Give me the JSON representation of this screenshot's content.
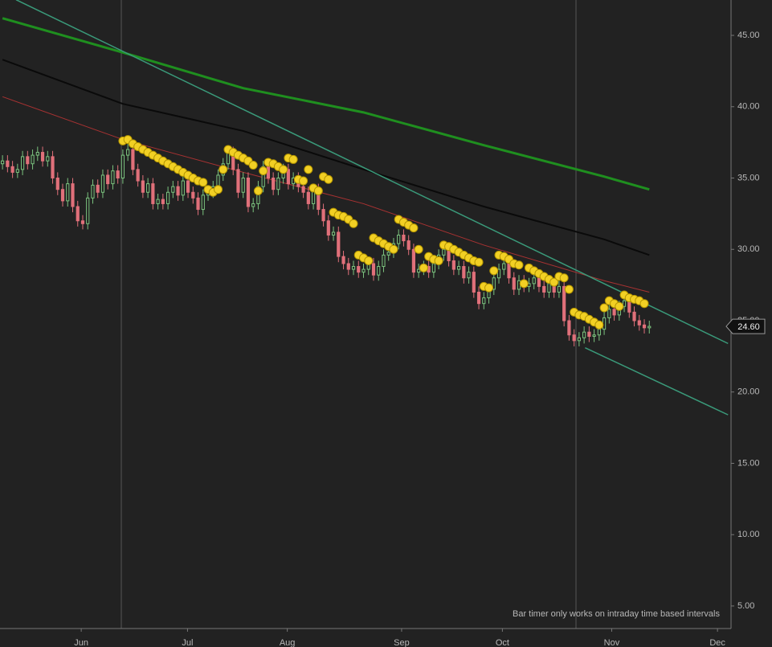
{
  "chart_data": {
    "type": "candlestick",
    "up_color": "#7cc47f",
    "down_color": "#e0707a",
    "open": [
      36.0,
      36.2,
      35.8,
      35.4,
      35.6,
      36.5,
      36.0,
      36.6,
      36.8,
      36.2,
      36.5,
      35.0,
      34.2,
      33.4,
      34.6,
      33.0,
      32.0,
      31.8,
      33.6,
      34.5,
      34.0,
      35.2,
      34.6,
      35.5,
      35.0,
      36.6,
      37.0,
      35.6,
      34.8,
      34.0,
      34.6,
      33.2,
      33.5,
      33.2,
      34.0,
      34.4,
      33.8,
      34.8,
      34.0,
      33.6,
      32.8,
      33.8,
      34.0,
      34.4,
      35.2,
      36.0,
      36.8,
      35.6,
      34.0,
      35.0,
      33.0,
      33.2,
      34.4,
      35.8,
      35.0,
      34.2,
      35.0,
      35.6,
      34.6,
      35.0,
      34.4,
      34.0,
      33.2,
      34.2,
      32.8,
      32.0,
      31.0,
      31.2,
      29.5,
      29.0,
      28.6,
      28.8,
      28.4,
      28.6,
      29.0,
      28.2,
      28.8,
      29.6,
      29.8,
      30.4,
      31.0,
      30.6,
      30.0,
      28.4,
      28.6,
      28.8,
      28.4,
      29.0,
      29.6,
      30.0,
      29.2,
      28.6,
      28.8,
      28.0,
      28.4,
      27.0,
      26.2,
      26.6,
      27.2,
      28.0,
      28.6,
      29.0,
      28.0,
      27.2,
      27.8,
      27.4,
      27.6,
      28.0,
      27.4,
      27.0,
      27.6,
      27.0,
      27.4,
      25.0,
      24.0,
      23.6,
      23.8,
      24.2,
      23.9,
      24.0,
      24.4,
      25.2,
      25.8,
      25.4,
      26.0,
      26.4,
      25.6,
      25.0,
      24.7,
      24.5
    ],
    "high": [
      36.6,
      36.6,
      36.2,
      36.0,
      36.9,
      36.9,
      37.0,
      37.2,
      37.2,
      36.9,
      36.9,
      35.4,
      34.6,
      35.0,
      35.0,
      33.4,
      32.4,
      34.0,
      34.9,
      34.9,
      35.6,
      35.6,
      35.9,
      35.9,
      37.0,
      37.4,
      37.4,
      36.0,
      35.2,
      35.0,
      35.0,
      33.9,
      33.9,
      34.4,
      34.8,
      34.8,
      35.2,
      35.2,
      34.4,
      34.0,
      34.2,
      34.4,
      34.8,
      35.6,
      36.4,
      37.2,
      37.2,
      36.0,
      35.4,
      35.4,
      33.6,
      34.8,
      36.2,
      36.2,
      35.4,
      35.4,
      36.0,
      36.0,
      35.4,
      35.4,
      34.8,
      34.4,
      34.6,
      34.6,
      33.2,
      32.4,
      31.6,
      31.6,
      29.9,
      29.4,
      29.2,
      29.2,
      29.0,
      29.4,
      29.4,
      29.2,
      30.0,
      30.2,
      30.8,
      31.4,
      31.4,
      31.0,
      30.4,
      29.0,
      29.2,
      29.2,
      29.4,
      30.0,
      30.4,
      30.4,
      29.6,
      29.2,
      29.2,
      28.8,
      28.8,
      27.4,
      27.0,
      27.6,
      28.4,
      29.0,
      29.4,
      29.4,
      28.4,
      28.2,
      28.2,
      28.0,
      28.4,
      28.4,
      27.8,
      28.0,
      28.0,
      27.8,
      27.8,
      25.4,
      24.4,
      24.2,
      24.6,
      24.6,
      24.4,
      24.8,
      25.6,
      26.2,
      26.2,
      26.4,
      26.8,
      26.8,
      26.0,
      25.4,
      25.1,
      25.0
    ],
    "low": [
      35.6,
      35.4,
      35.0,
      35.0,
      35.2,
      35.6,
      35.6,
      36.2,
      35.8,
      35.8,
      34.6,
      33.8,
      33.0,
      33.0,
      32.6,
      31.6,
      31.4,
      31.4,
      33.2,
      33.6,
      33.6,
      34.2,
      34.2,
      34.6,
      34.6,
      36.2,
      35.2,
      34.4,
      33.6,
      33.6,
      32.8,
      32.8,
      32.8,
      32.8,
      33.6,
      33.4,
      33.4,
      33.6,
      33.2,
      32.4,
      32.4,
      33.4,
      33.6,
      34.0,
      34.8,
      35.6,
      35.2,
      33.6,
      33.6,
      32.6,
      32.6,
      32.8,
      34.0,
      34.6,
      33.8,
      33.8,
      34.6,
      34.2,
      34.2,
      34.0,
      33.6,
      32.8,
      32.8,
      32.4,
      31.6,
      30.6,
      30.6,
      29.1,
      28.6,
      28.2,
      28.2,
      28.0,
      28.0,
      28.2,
      27.8,
      27.8,
      28.4,
      29.2,
      29.4,
      30.0,
      30.2,
      29.6,
      28.0,
      28.0,
      28.2,
      28.0,
      28.0,
      28.6,
      29.2,
      28.8,
      28.2,
      28.2,
      27.6,
      27.6,
      26.6,
      25.8,
      25.8,
      26.2,
      26.8,
      27.6,
      28.2,
      27.6,
      26.8,
      26.8,
      27.0,
      27.0,
      27.2,
      27.0,
      26.6,
      26.6,
      26.6,
      26.6,
      24.6,
      23.6,
      23.2,
      23.2,
      23.4,
      23.5,
      23.5,
      23.6,
      24.0,
      24.8,
      25.0,
      25.0,
      25.6,
      25.2,
      24.6,
      24.3,
      24.1,
      24.1
    ],
    "close": [
      36.2,
      35.8,
      35.4,
      35.6,
      36.5,
      36.0,
      36.6,
      36.8,
      36.2,
      36.5,
      35.0,
      34.2,
      33.4,
      34.6,
      33.0,
      32.0,
      31.8,
      33.6,
      34.5,
      34.0,
      35.2,
      34.6,
      35.5,
      35.0,
      36.6,
      37.0,
      35.6,
      34.8,
      34.0,
      34.6,
      33.2,
      33.5,
      33.2,
      34.0,
      34.4,
      33.8,
      34.8,
      34.0,
      33.6,
      32.8,
      33.8,
      34.0,
      34.4,
      35.2,
      36.0,
      36.8,
      35.6,
      34.0,
      35.0,
      33.0,
      33.2,
      34.4,
      35.8,
      35.0,
      34.2,
      35.0,
      35.6,
      34.6,
      35.0,
      34.4,
      34.0,
      33.2,
      34.2,
      32.8,
      32.0,
      31.0,
      31.2,
      29.5,
      29.0,
      28.6,
      28.8,
      28.4,
      28.6,
      29.0,
      28.2,
      28.8,
      29.6,
      29.8,
      30.4,
      31.0,
      30.6,
      30.0,
      28.4,
      28.6,
      28.8,
      28.4,
      29.0,
      29.6,
      30.0,
      29.2,
      28.6,
      28.8,
      28.0,
      28.4,
      27.0,
      26.2,
      26.6,
      27.2,
      28.0,
      28.6,
      29.0,
      28.0,
      27.2,
      27.8,
      27.4,
      27.6,
      28.0,
      27.4,
      27.0,
      27.6,
      27.0,
      27.4,
      25.0,
      24.0,
      23.6,
      23.8,
      24.2,
      23.9,
      24.0,
      24.4,
      25.2,
      25.8,
      25.4,
      26.0,
      26.4,
      25.6,
      25.0,
      24.7,
      24.5,
      24.6
    ],
    "sar": {
      "color": "#f2d024",
      "values": [
        null,
        null,
        null,
        null,
        null,
        null,
        null,
        null,
        null,
        null,
        null,
        null,
        null,
        null,
        null,
        null,
        null,
        null,
        null,
        null,
        null,
        null,
        null,
        null,
        37.6,
        37.7,
        37.4,
        37.2,
        37.0,
        36.8,
        36.6,
        36.4,
        36.2,
        36.0,
        35.8,
        35.6,
        35.4,
        35.2,
        35.0,
        34.8,
        34.7,
        34.2,
        34.0,
        34.2,
        35.6,
        37.0,
        36.8,
        36.6,
        36.4,
        36.2,
        35.9,
        34.1,
        35.5,
        36.1,
        36.0,
        35.8,
        35.6,
        36.4,
        36.3,
        34.9,
        34.8,
        35.6,
        34.3,
        34.1,
        35.1,
        34.9,
        32.6,
        32.4,
        32.3,
        32.1,
        31.8,
        29.6,
        29.4,
        29.2,
        30.8,
        30.6,
        30.4,
        30.2,
        30.0,
        32.1,
        31.9,
        31.7,
        31.5,
        30.0,
        28.7,
        29.5,
        29.3,
        29.2,
        30.3,
        30.2,
        30.0,
        29.8,
        29.6,
        29.4,
        29.2,
        29.1,
        27.4,
        27.3,
        28.5,
        29.6,
        29.5,
        29.3,
        29.0,
        28.9,
        27.6,
        28.7,
        28.5,
        28.3,
        28.1,
        27.9,
        27.7,
        28.1,
        28.0,
        27.2,
        25.6,
        25.4,
        25.3,
        25.1,
        24.9,
        24.7,
        25.9,
        26.4,
        26.2,
        26.0,
        26.8,
        26.6,
        26.5,
        26.4,
        26.2,
        null
      ]
    },
    "lines": [
      {
        "color": "#1f8f1f",
        "width": 3,
        "x": [
          0,
          24,
          48,
          72,
          96,
          120,
          129
        ],
        "values": [
          46.2,
          43.8,
          41.3,
          39.6,
          37.3,
          35.1,
          34.2
        ]
      },
      {
        "color": "#0a0a0a",
        "width": 2,
        "x": [
          0,
          24,
          48,
          72,
          96,
          120,
          129
        ],
        "values": [
          43.3,
          40.2,
          38.3,
          35.6,
          33.0,
          30.7,
          29.6
        ]
      },
      {
        "color": "#a83232",
        "width": 1,
        "x": [
          0,
          24,
          48,
          72,
          96,
          120,
          129
        ],
        "values": [
          40.7,
          37.7,
          35.4,
          33.2,
          30.3,
          27.8,
          27.0
        ]
      },
      {
        "color": "#3a9a7a",
        "width": 1.5,
        "x": [
          2.7,
          144.7
        ],
        "values": [
          47.5,
          23.4
        ]
      },
      {
        "color": "#3a9a7a",
        "width": 1.5,
        "x": [
          116.2,
          144.7
        ],
        "values": [
          23.1,
          18.4
        ]
      }
    ],
    "xlim": [
      -0.5,
      145.3
    ],
    "xticks": [
      {
        "value": 15.7,
        "label": "Jun"
      },
      {
        "value": 36.9,
        "label": "Jul"
      },
      {
        "value": 56.8,
        "label": "Aug"
      },
      {
        "value": 79.6,
        "label": "Sep"
      },
      {
        "value": 99.7,
        "label": "Oct"
      },
      {
        "value": 121.5,
        "label": "Nov"
      },
      {
        "value": 142.6,
        "label": "Dec"
      }
    ],
    "ylim": [
      3.42,
      47.48
    ],
    "yticks": [
      {
        "value": 5,
        "label": "5.00"
      },
      {
        "value": 10,
        "label": "10.00"
      },
      {
        "value": 15,
        "label": "15.00"
      },
      {
        "value": 20,
        "label": "20.00"
      },
      {
        "value": 25,
        "label": "25.00"
      },
      {
        "value": 30,
        "label": "30.00"
      },
      {
        "value": 35,
        "label": "35.00"
      },
      {
        "value": 40,
        "label": "40.00"
      },
      {
        "value": 45,
        "label": "45.00"
      }
    ],
    "last_price": {
      "value": 24.6,
      "label": "24.60"
    },
    "annotation": "Bar timer only works on intraday time based intervals"
  }
}
